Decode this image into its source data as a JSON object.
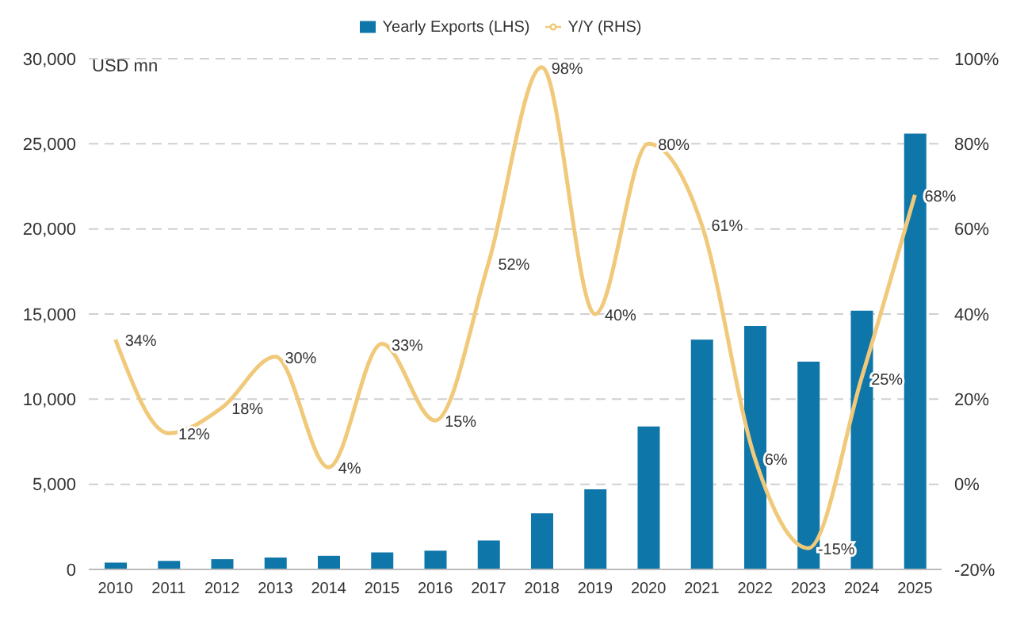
{
  "chart_data": {
    "type": "bar",
    "ylabel": "USD mn",
    "categories": [
      "2010",
      "2011",
      "2012",
      "2013",
      "2014",
      "2015",
      "2016",
      "2017",
      "2018",
      "2019",
      "2020",
      "2021",
      "2022",
      "2023",
      "2024",
      "2025"
    ],
    "series": [
      {
        "name": "Yearly Exports (LHS)",
        "color": "#0e76a8",
        "values": [
          400,
          500,
          600,
          700,
          800,
          1000,
          1100,
          1700,
          3300,
          4700,
          8400,
          13500,
          14300,
          12200,
          15200,
          25600
        ]
      },
      {
        "name": "Y/Y (RHS)",
        "type": "line",
        "axis": "y2",
        "color": "#f0c97a",
        "data_labels": true,
        "value_labels": [
          "34%",
          "12%",
          "18%",
          "30%",
          "4%",
          "33%",
          "15%",
          "52%",
          "98%",
          "40%",
          "80%",
          "61%",
          "6%",
          "-15%",
          "25%",
          "68%"
        ],
        "values": [
          34,
          12,
          18,
          30,
          4,
          33,
          15,
          52,
          98,
          40,
          80,
          61,
          6,
          -15,
          25,
          68
        ]
      }
    ],
    "ylim": [
      0,
      30000
    ],
    "yticks": [
      0,
      {
        "value": 5000,
        "label": "5,000"
      },
      {
        "value": 10000,
        "label": "10,000"
      },
      {
        "value": 15000,
        "label": "15,000"
      },
      {
        "value": 20000,
        "label": "20,000"
      },
      {
        "value": 25000,
        "label": "25,000"
      },
      {
        "value": 30000,
        "label": "30,000"
      }
    ],
    "y2lim": [
      -20,
      100
    ],
    "y2ticks": [
      {
        "value": -20,
        "label": "-20%"
      },
      {
        "value": 0,
        "label": "0%"
      },
      {
        "value": 20,
        "label": "20%"
      },
      {
        "value": 40,
        "label": "40%"
      },
      {
        "value": 60,
        "label": "60%"
      },
      {
        "value": 80,
        "label": "80%"
      },
      {
        "value": 100,
        "label": "100%"
      }
    ],
    "grid": "y",
    "legend": "top",
    "marker": "none",
    "line_style": "solid"
  }
}
